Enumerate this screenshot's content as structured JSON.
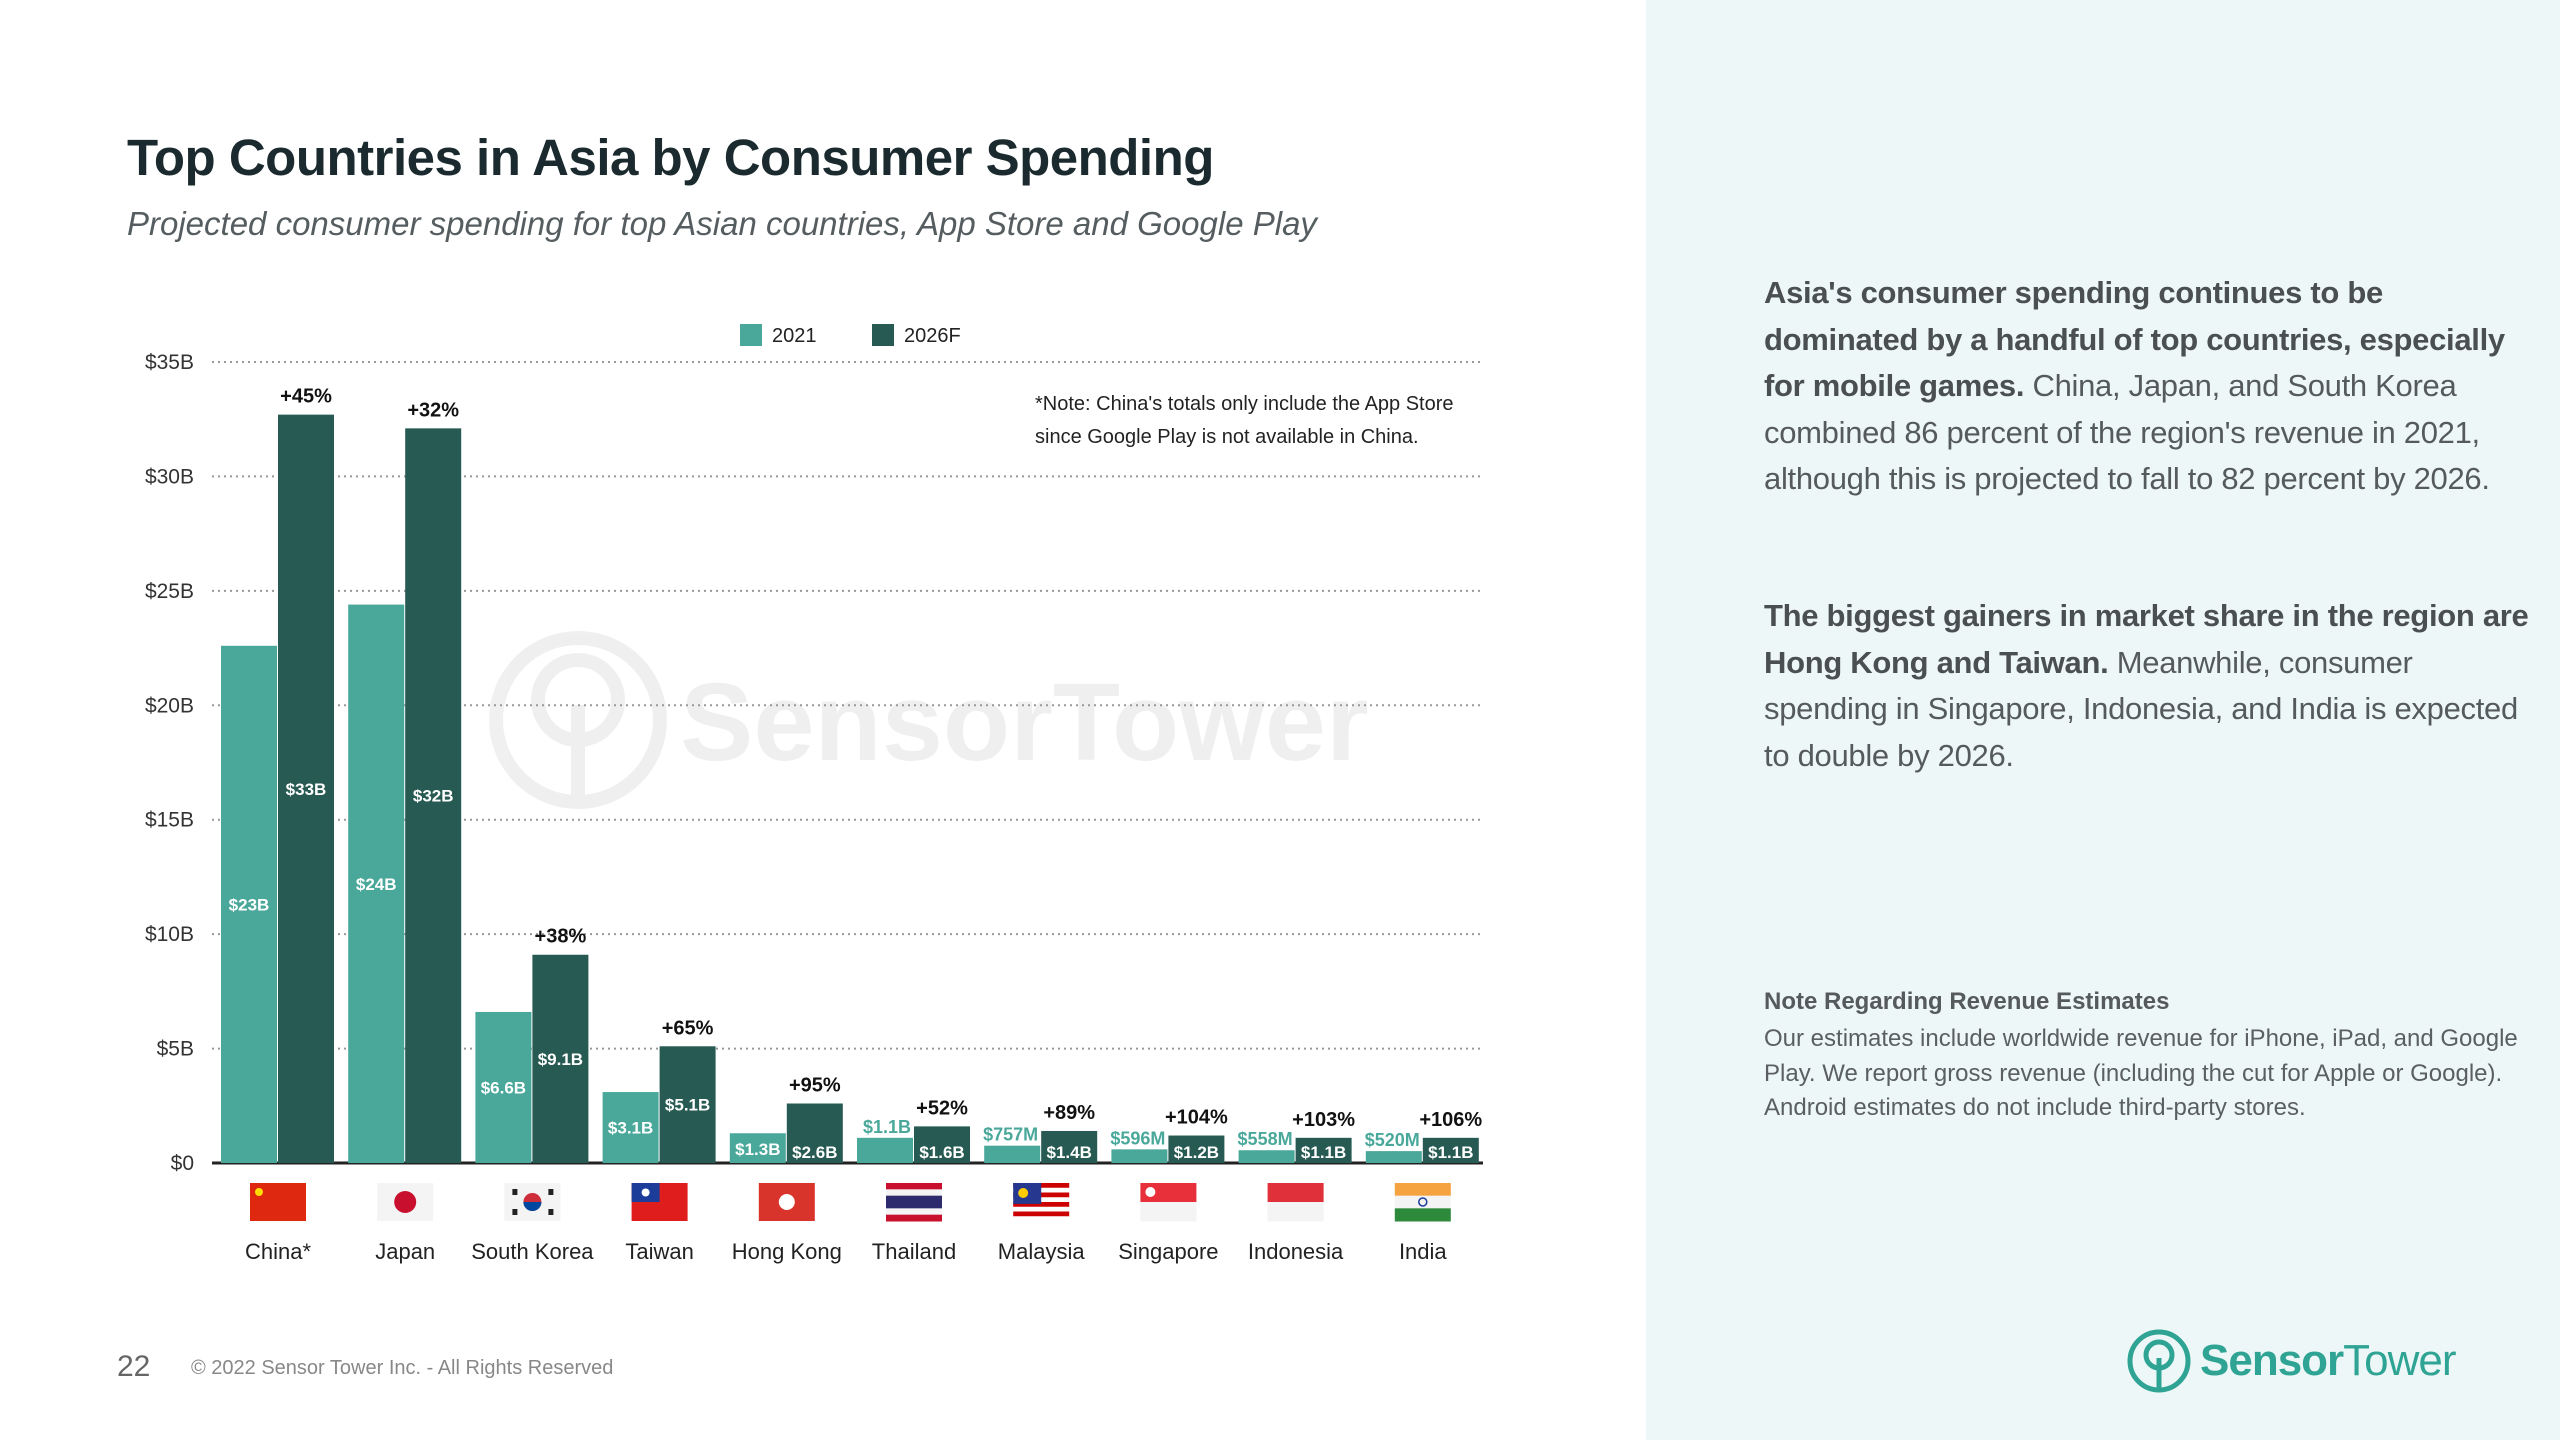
{
  "header": {
    "title": "Top Countries in Asia by Consumer Spending",
    "subtitle": "Projected consumer spending for top Asian countries, App Store and Google Play"
  },
  "chart_data": {
    "type": "bar",
    "title": "Top Countries in Asia by Consumer Spending",
    "xlabel": "",
    "ylabel": "",
    "ylim": [
      0,
      35
    ],
    "yticks": [
      "$0",
      "$5B",
      "$10B",
      "$15B",
      "$20B",
      "$25B",
      "$30B",
      "$35B"
    ],
    "grid": true,
    "legend_position": "top-center",
    "categories": [
      "China*",
      "Japan",
      "South Korea",
      "Taiwan",
      "Hong Kong",
      "Thailand",
      "Malaysia",
      "Singapore",
      "Indonesia",
      "India"
    ],
    "flags": [
      "cn",
      "jp",
      "kr",
      "tw",
      "hk",
      "th",
      "my",
      "sg",
      "id",
      "in"
    ],
    "series": [
      {
        "name": "2021",
        "color": "#4aa89b",
        "values": [
          22.6,
          24.4,
          6.6,
          3.1,
          1.3,
          1.1,
          0.757,
          0.596,
          0.558,
          0.52
        ],
        "labels": [
          "$23B",
          "$24B",
          "$6.6B",
          "$3.1B",
          "$1.3B",
          "$1.1B",
          "$757M",
          "$596M",
          "$558M",
          "$520M"
        ]
      },
      {
        "name": "2026F",
        "color": "#275a52",
        "values": [
          32.7,
          32.1,
          9.1,
          5.1,
          2.6,
          1.6,
          1.4,
          1.2,
          1.1,
          1.1
        ],
        "labels": [
          "$33B",
          "$32B",
          "$9.1B",
          "$5.1B",
          "$2.6B",
          "$1.6B",
          "$1.4B",
          "$1.2B",
          "$1.1B",
          "$1.1B"
        ]
      }
    ],
    "growth": [
      "+45%",
      "+32%",
      "+38%",
      "+65%",
      "+95%",
      "+52%",
      "+89%",
      "+104%",
      "+103%",
      "+106%"
    ],
    "annotation": [
      "*Note: China's totals only include the App Store",
      "since Google Play is not available in China."
    ],
    "watermark": "SensorTower"
  },
  "sidebar": {
    "p1_bold": "Asia's consumer spending continues to be dominated by a handful of top countries, especially for mobile games.",
    "p1_rest": " China, Japan, and South Korea combined 86 percent of the region's revenue in 2021, although this is projected to fall to 82 percent by 2026.",
    "p2_bold": "The biggest gainers in market share in the region are Hong Kong and Taiwan.",
    "p2_rest": " Meanwhile, consumer spending in Singapore, Indonesia, and India is expected to double by 2026.",
    "note_heading": "Note Regarding Revenue Estimates",
    "note_text": "Our estimates include worldwide revenue for iPhone, iPad, and Google Play. We report gross revenue (including the cut for Apple or Google). Android estimates do not include third-party stores."
  },
  "footer": {
    "page_number": "22",
    "copyright": "© 2022 Sensor Tower Inc. - All Rights Reserved",
    "logo_bold": "Sensor",
    "logo_light": "Tower"
  }
}
